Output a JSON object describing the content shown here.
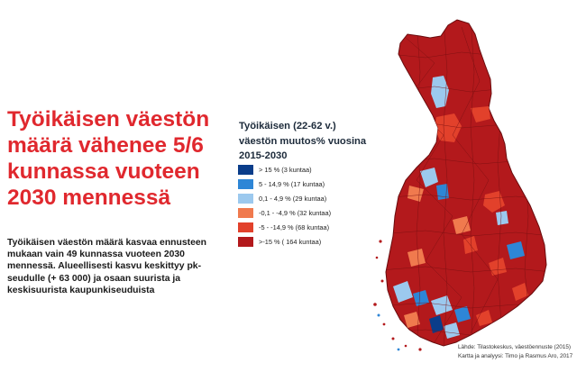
{
  "headline": [
    "Työikäisen väestön",
    "määrä vähenee 5/6",
    "kunnassa vuoteen",
    "2030 mennessä"
  ],
  "body": [
    "Työikäisen väestön määrä kasvaa ennusteen",
    "mukaan vain 49 kunnassa vuoteen 2030",
    "mennessä. Alueellisesti kasvu keskittyy pk-",
    "seudulle (+ 63 000) ja osaan suurista ja",
    "keskisuurista kaupunkiseuduista"
  ],
  "legend": {
    "title": [
      "Työikäisen (22-62 v.)",
      "väestön muutos% vuosina",
      "2015-2030"
    ],
    "items": [
      {
        "label": "> 15  % (3 kuntaa)",
        "color": "#0a3d8a"
      },
      {
        "label": "5 - 14,9 % (17 kuntaa)",
        "color": "#2e86d6"
      },
      {
        "label": "0,1 - 4,9 % (29 kuntaa)",
        "color": "#9cc9ee"
      },
      {
        "label": "-0,1 - -4,9 % (32 kuntaa)",
        "color": "#f07a4e"
      },
      {
        "label": "-5 - -14,9 % (68 kuntaa)",
        "color": "#e2412b"
      },
      {
        "label": ">-15  % ( 164 kuntaa)",
        "color": "#b3191c"
      }
    ]
  },
  "source": [
    "Lähde: Tilastokeskus, väestöennuste (2015)",
    "Kartta ja analyysi: Timo ja Rasmus Aro, 2017"
  ],
  "colors": {
    "headline": "#e0282e",
    "map_dark_red": "#b3191c",
    "map_mid_red": "#e2412b",
    "map_orange": "#f07a4e",
    "map_light_blue": "#9cc9ee",
    "map_blue": "#2e86d6",
    "map_dark_blue": "#0a3d8a"
  }
}
